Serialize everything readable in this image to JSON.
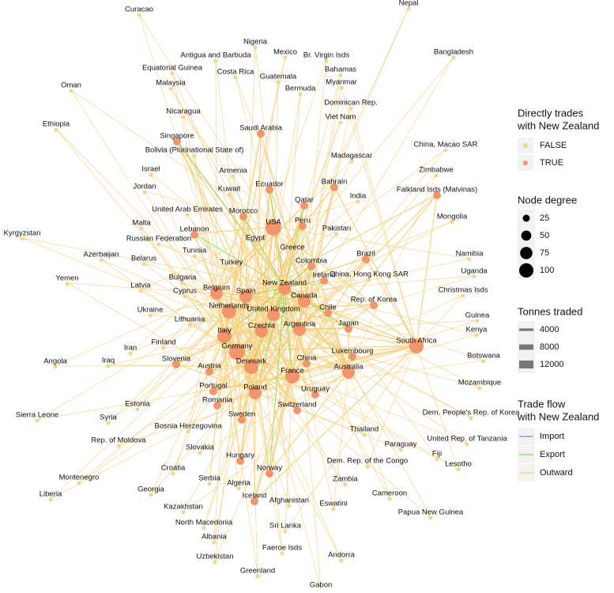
{
  "nodes": [
    {
      "label": "Curacao",
      "direct": false
    },
    {
      "label": "Nepal",
      "direct": false
    },
    {
      "label": "Nigeria",
      "direct": false
    },
    {
      "label": "Mexico",
      "direct": false
    },
    {
      "label": "Antigua and Barbuda",
      "direct": false
    },
    {
      "label": "Br. Virgin Isds",
      "direct": false
    },
    {
      "label": "Bangladesh",
      "direct": false
    },
    {
      "label": "Equatorial Guinea",
      "direct": false
    },
    {
      "label": "Costa Rica",
      "direct": false
    },
    {
      "label": "Bahamas",
      "direct": false
    },
    {
      "label": "Guatemala",
      "direct": false
    },
    {
      "label": "Malaysia",
      "direct": false
    },
    {
      "label": "Myanmar",
      "direct": false
    },
    {
      "label": "Oman",
      "direct": false
    },
    {
      "label": "Bermuda",
      "direct": false
    },
    {
      "label": "Dominican Rep.",
      "direct": false
    },
    {
      "label": "Nicaragua",
      "direct": false
    },
    {
      "label": "Viet Nam",
      "direct": false
    },
    {
      "label": "Singapore",
      "direct": true
    },
    {
      "label": "Saudi Arabia",
      "direct": true
    },
    {
      "label": "Ethiopia",
      "direct": false
    },
    {
      "label": "China, Macao SAR",
      "direct": false
    },
    {
      "label": "Bolivia (Plurinational State of)",
      "direct": false
    },
    {
      "label": "Madagascar",
      "direct": false
    },
    {
      "label": "Zimbabwe",
      "direct": false
    },
    {
      "label": "Israel",
      "direct": false
    },
    {
      "label": "Armenia",
      "direct": false
    },
    {
      "label": "Ecuador",
      "direct": true
    },
    {
      "label": "Bahrain",
      "direct": true
    },
    {
      "label": "Jordan",
      "direct": false
    },
    {
      "label": "Kuwait",
      "direct": false
    },
    {
      "label": "Falkland Isds (Malvinas)",
      "direct": true
    },
    {
      "label": "India",
      "direct": false
    },
    {
      "label": "Qatar",
      "direct": true
    },
    {
      "label": "United Arab Emirates",
      "direct": false
    },
    {
      "label": "Mongolia",
      "direct": false
    },
    {
      "label": "Morocco",
      "direct": true
    },
    {
      "label": "Peru",
      "direct": true
    },
    {
      "label": "Malta",
      "direct": false
    },
    {
      "label": "Lebanon",
      "direct": true
    },
    {
      "label": "USA",
      "direct": true
    },
    {
      "label": "Egypt",
      "direct": false
    },
    {
      "label": "Pakistan",
      "direct": false
    },
    {
      "label": "Kyrgyzstan",
      "direct": false
    },
    {
      "label": "Russian Federation",
      "direct": false
    },
    {
      "label": "Greece",
      "direct": false
    },
    {
      "label": "Tunisia",
      "direct": false
    },
    {
      "label": "Brazil",
      "direct": true
    },
    {
      "label": "Namibia",
      "direct": false
    },
    {
      "label": "Azerbaijan",
      "direct": false
    },
    {
      "label": "Belarus",
      "direct": false
    },
    {
      "label": "Colombia",
      "direct": true
    },
    {
      "label": "Turkey",
      "direct": false
    },
    {
      "label": "Uganda",
      "direct": false
    },
    {
      "label": "Ireland",
      "direct": true
    },
    {
      "label": "China, Hong Kong SAR",
      "direct": false
    },
    {
      "label": "Bulgaria",
      "direct": false
    },
    {
      "label": "Yemen",
      "direct": false
    },
    {
      "label": "Belgium",
      "direct": true
    },
    {
      "label": "New Zealand",
      "direct": true
    },
    {
      "label": "Spain",
      "direct": true
    },
    {
      "label": "Latvia",
      "direct": false
    },
    {
      "label": "Canada",
      "direct": true
    },
    {
      "label": "Christmas Isds",
      "direct": false
    },
    {
      "label": "Rep. of Korea",
      "direct": true
    },
    {
      "label": "Cyprus",
      "direct": false
    },
    {
      "label": "Chile",
      "direct": true
    },
    {
      "label": "Netherlands",
      "direct": true
    },
    {
      "label": "United Kingdom",
      "direct": true
    },
    {
      "label": "Ukraine",
      "direct": false
    },
    {
      "label": "Guinea",
      "direct": false
    },
    {
      "label": "Czechia",
      "direct": true
    },
    {
      "label": "Japan",
      "direct": true
    },
    {
      "label": "Argentina",
      "direct": true
    },
    {
      "label": "Lithuania",
      "direct": false
    },
    {
      "label": "Kenya",
      "direct": false
    },
    {
      "label": "South Africa",
      "direct": true
    },
    {
      "label": "Finland",
      "direct": false
    },
    {
      "label": "Italy",
      "direct": true
    },
    {
      "label": "Germany",
      "direct": true
    },
    {
      "label": "Iran",
      "direct": false
    },
    {
      "label": "Iraq",
      "direct": false
    },
    {
      "label": "Luxembourg",
      "direct": true
    },
    {
      "label": "Slovenia",
      "direct": true
    },
    {
      "label": "Angola",
      "direct": false
    },
    {
      "label": "China",
      "direct": true
    },
    {
      "label": "Austria",
      "direct": true
    },
    {
      "label": "Denmark",
      "direct": true
    },
    {
      "label": "Australia",
      "direct": true
    },
    {
      "label": "Botswana",
      "direct": false
    },
    {
      "label": "France",
      "direct": true
    },
    {
      "label": "Uruguay",
      "direct": true
    },
    {
      "label": "Portugal",
      "direct": true
    },
    {
      "label": "Poland",
      "direct": true
    },
    {
      "label": "Mozambique",
      "direct": false
    },
    {
      "label": "Romania",
      "direct": true
    },
    {
      "label": "Estonia",
      "direct": false
    },
    {
      "label": "Switzerland",
      "direct": true
    },
    {
      "label": "Sierra Leone",
      "direct": false
    },
    {
      "label": "Syria",
      "direct": false
    },
    {
      "label": "Sweden",
      "direct": true
    },
    {
      "label": "Dem. People's Rep. of Korea",
      "direct": false
    },
    {
      "label": "Thailand",
      "direct": false
    },
    {
      "label": "Bosnia Herzegovina",
      "direct": false
    },
    {
      "label": "Rep. of Moldova",
      "direct": false
    },
    {
      "label": "Paraguay",
      "direct": false
    },
    {
      "label": "United Rep. of Tanzania",
      "direct": false
    },
    {
      "label": "Slovakia",
      "direct": false
    },
    {
      "label": "Dem. Rep. of the Congo",
      "direct": false
    },
    {
      "label": "Fiji",
      "direct": false
    },
    {
      "label": "Hungary",
      "direct": true
    },
    {
      "label": "Lesotho",
      "direct": false
    },
    {
      "label": "Croatia",
      "direct": false
    },
    {
      "label": "Montenegro",
      "direct": false
    },
    {
      "label": "Norway",
      "direct": true
    },
    {
      "label": "Serbia",
      "direct": false
    },
    {
      "label": "Zambia",
      "direct": false
    },
    {
      "label": "Georgia",
      "direct": false
    },
    {
      "label": "Liberia",
      "direct": false
    },
    {
      "label": "Algeria",
      "direct": false
    },
    {
      "label": "Cameroon",
      "direct": false
    },
    {
      "label": "Iceland",
      "direct": true
    },
    {
      "label": "Afghanistan",
      "direct": false
    },
    {
      "label": "Eswatini",
      "direct": false
    },
    {
      "label": "Kazakhstan",
      "direct": false
    },
    {
      "label": "Papua New Guinea",
      "direct": false
    },
    {
      "label": "North Macedonia",
      "direct": false
    },
    {
      "label": "Sri Lanka",
      "direct": false
    },
    {
      "label": "Albania",
      "direct": false
    },
    {
      "label": "Faeroe Isds",
      "direct": false
    },
    {
      "label": "Uzbekistan",
      "direct": false
    },
    {
      "label": "Andorra",
      "direct": false
    },
    {
      "label": "Greenland",
      "direct": false
    },
    {
      "label": "Gabon",
      "direct": false
    }
  ],
  "legend": {
    "direct": {
      "title_lines": [
        "Directly trades",
        "with New Zealand"
      ],
      "items": [
        {
          "label": "FALSE",
          "color": "#f8d38a"
        },
        {
          "label": "TRUE",
          "color": "#f2956a"
        }
      ]
    },
    "degree": {
      "title": "Node degree",
      "items": [
        25,
        50,
        75,
        100
      ]
    },
    "tonnes": {
      "title": "Tonnes traded",
      "items": [
        4000,
        8000,
        12000
      ]
    },
    "flow": {
      "title_lines": [
        "Trade flow",
        "with New Zealand"
      ],
      "items": [
        {
          "label": "Import",
          "color": "#8a8ad6"
        },
        {
          "label": "Export",
          "color": "#7ce05a"
        },
        {
          "label": "Outward",
          "color": "#f7cf7e"
        }
      ]
    }
  }
}
